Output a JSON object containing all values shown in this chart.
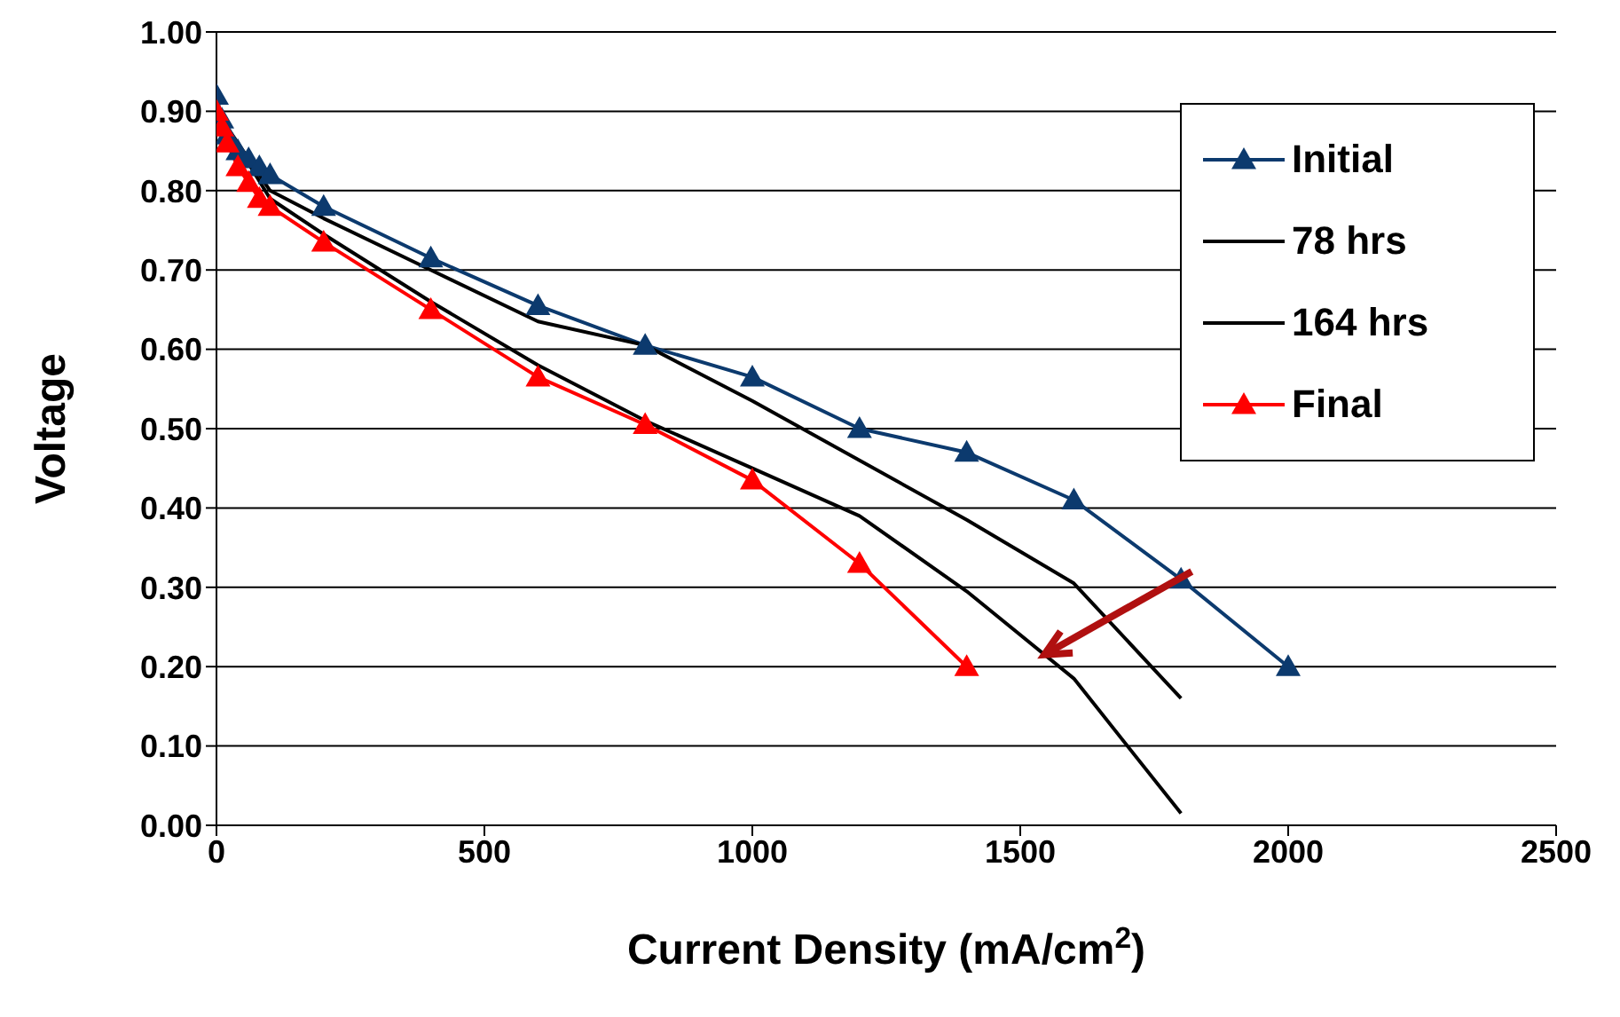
{
  "chart_data": {
    "type": "line",
    "xlabel": "Current Density (mA/cm$^{2}$)",
    "ylabel": "Voltage",
    "xlim": [
      0,
      2500
    ],
    "xticks": [
      0,
      500,
      1000,
      1500,
      2000,
      2500
    ],
    "ylim": [
      0,
      1
    ],
    "yticks": [
      {
        "value": 0,
        "label": "0.00"
      },
      {
        "value": 0.1,
        "label": "0.10"
      },
      {
        "value": 0.2,
        "label": "0.20"
      },
      {
        "value": 0.3,
        "label": "0.30"
      },
      {
        "value": 0.4,
        "label": "0.40"
      },
      {
        "value": 0.5,
        "label": "0.50"
      },
      {
        "value": 0.6,
        "label": "0.60"
      },
      {
        "value": 0.7,
        "label": "0.70"
      },
      {
        "value": 0.8,
        "label": "0.80"
      },
      {
        "value": 0.9,
        "label": "0.90"
      },
      {
        "value": 1,
        "label": "1.00"
      }
    ],
    "grid": "y",
    "legend": "top right",
    "line_style": "solid",
    "series": [
      {
        "name": "Initial",
        "color": "#0c3a6e",
        "marker": "triangle",
        "x": [
          0,
          10,
          20,
          40,
          60,
          80,
          100,
          200,
          400,
          600,
          800,
          1000,
          1200,
          1400,
          1600,
          1800,
          2000
        ],
        "values": [
          0.92,
          0.89,
          0.87,
          0.85,
          0.84,
          0.83,
          0.82,
          0.78,
          0.715,
          0.655,
          0.605,
          0.565,
          0.5,
          0.47,
          0.41,
          0.31,
          0.2
        ]
      },
      {
        "name": "78 hrs",
        "color": "#000000",
        "marker": "none",
        "x": [
          0,
          100,
          200,
          400,
          600,
          800,
          1000,
          1200,
          1400,
          1600,
          1800
        ],
        "values": [
          0.9,
          0.8,
          0.765,
          0.7,
          0.635,
          0.605,
          0.535,
          0.46,
          0.385,
          0.305,
          0.16
        ]
      },
      {
        "name": "164 hrs",
        "color": "#000000",
        "marker": "none",
        "x": [
          0,
          100,
          200,
          400,
          600,
          800,
          1000,
          1200,
          1400,
          1600,
          1800
        ],
        "values": [
          0.9,
          0.79,
          0.745,
          0.66,
          0.58,
          0.51,
          0.45,
          0.39,
          0.295,
          0.185,
          0.015
        ]
      },
      {
        "name": "Final",
        "color": "#ff0000",
        "marker": "triangle",
        "x": [
          0,
          10,
          20,
          40,
          60,
          80,
          100,
          200,
          400,
          600,
          800,
          1000,
          1200,
          1400
        ],
        "values": [
          0.9,
          0.88,
          0.86,
          0.83,
          0.81,
          0.79,
          0.78,
          0.735,
          0.65,
          0.565,
          0.505,
          0.435,
          0.33,
          0.2
        ]
      }
    ]
  }
}
